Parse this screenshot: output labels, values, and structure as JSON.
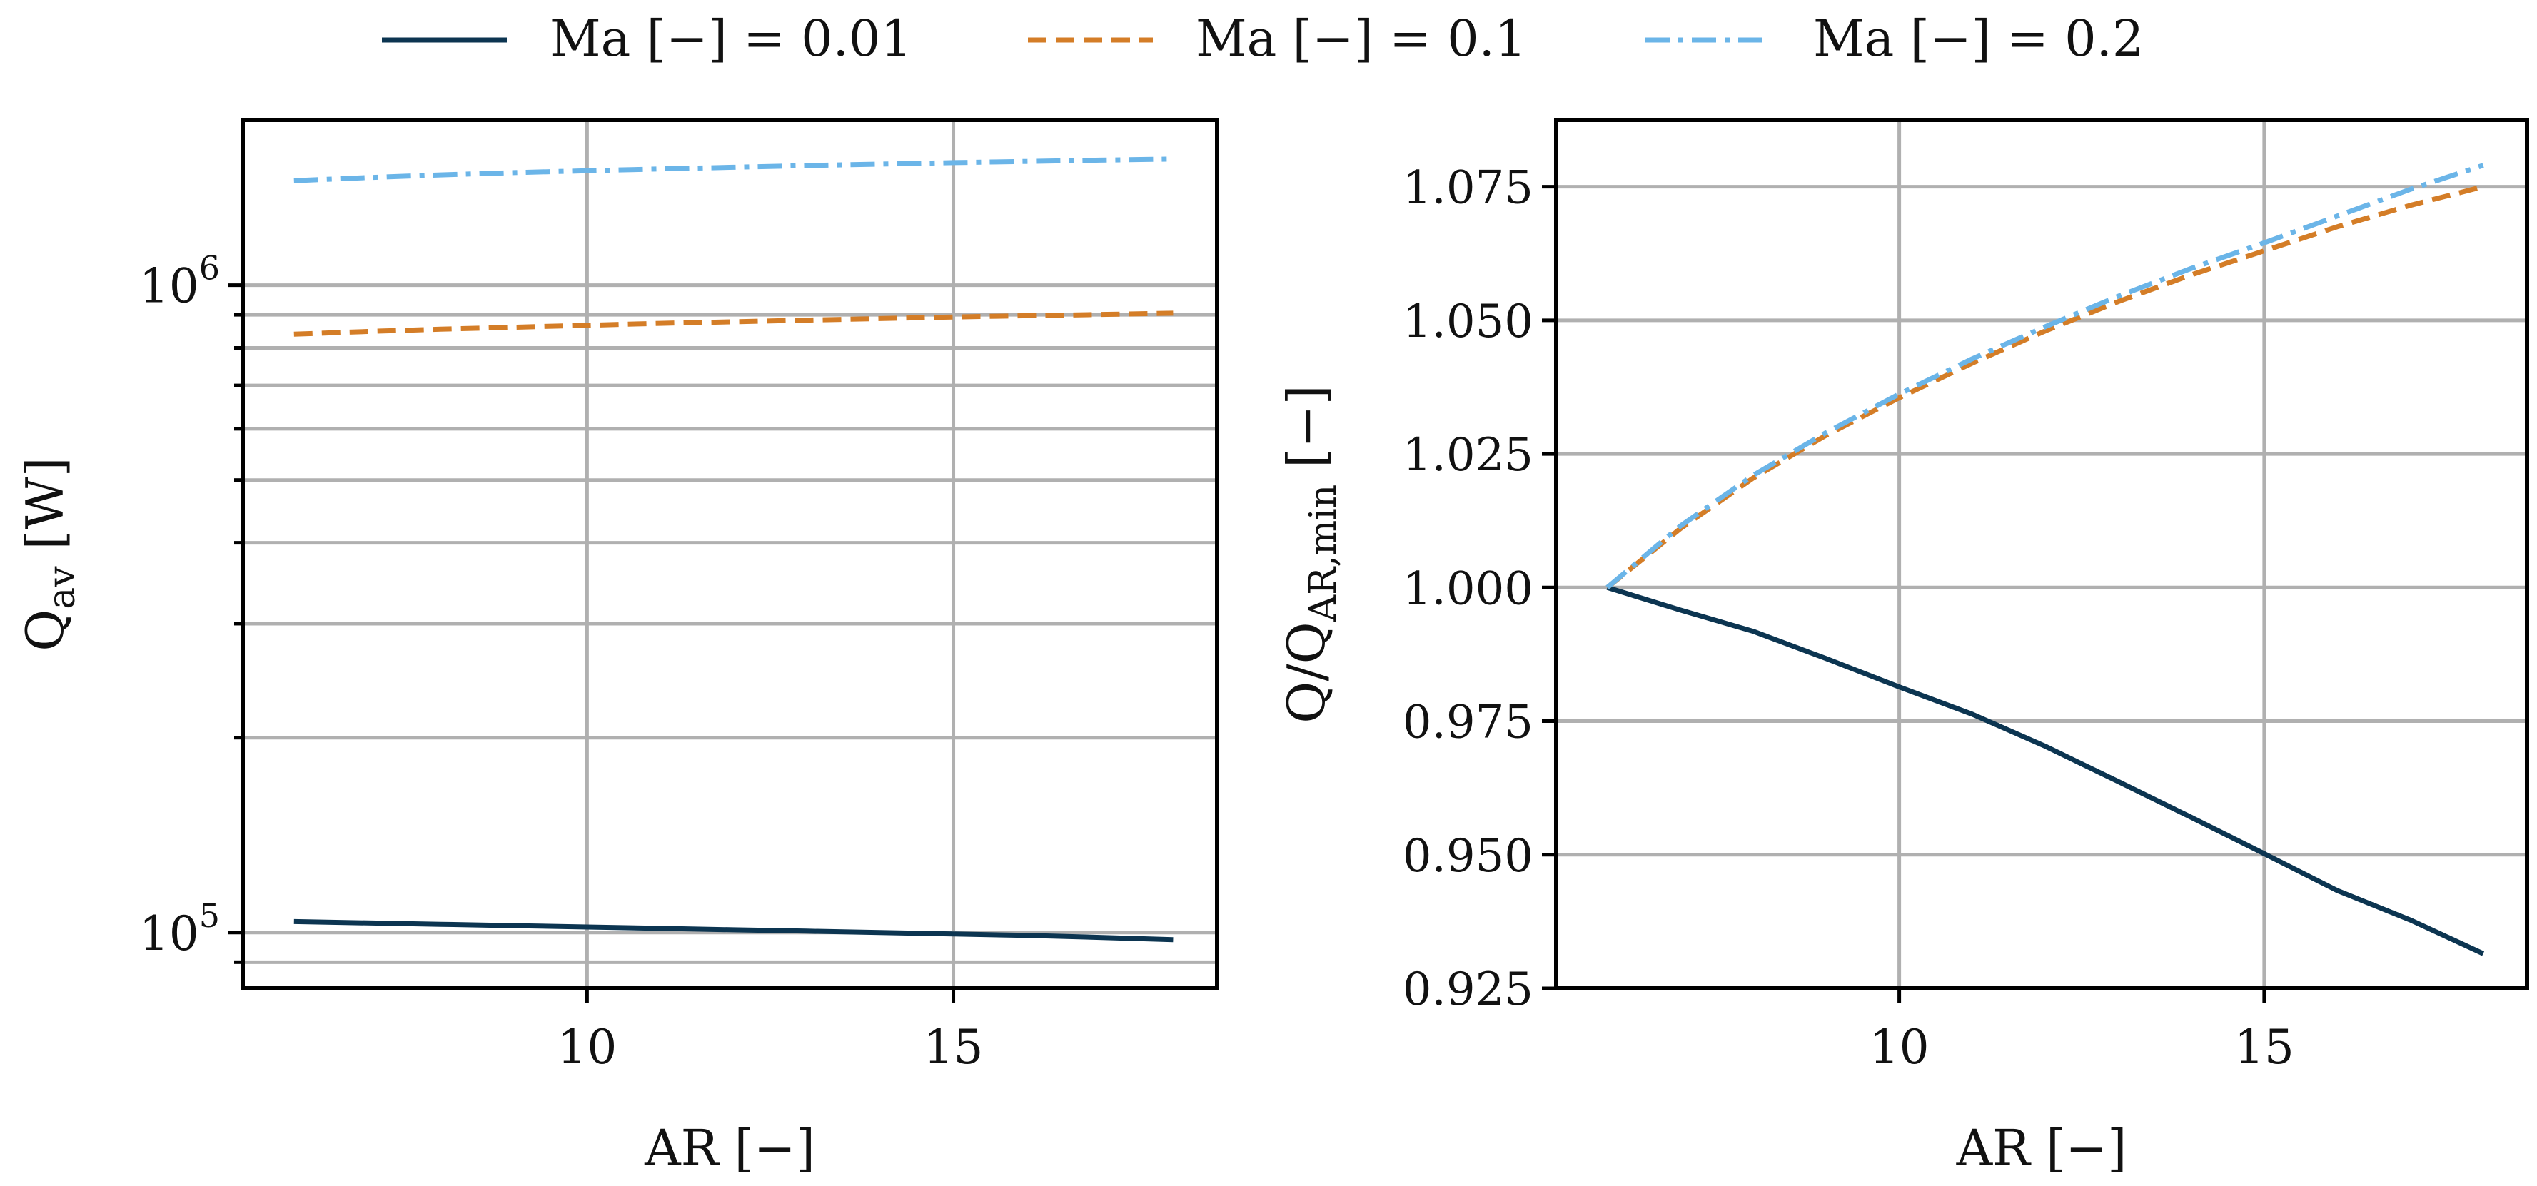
{
  "legend": [
    {
      "label": "Ma [−] = 0.01",
      "color": "#0c3551",
      "dash": "solid"
    },
    {
      "label": "Ma [−] = 0.1",
      "color": "#d47d27",
      "dash": "dashed"
    },
    {
      "label": "Ma [−] = 0.2",
      "color": "#6bb5e8",
      "dash": "dashdot"
    }
  ],
  "chart_data": [
    {
      "type": "line",
      "xlabel": "AR [−]",
      "ylabel": "Q",
      "ylabel_sub": "av",
      "ylabel_suffix": " [W]",
      "yscale": "log",
      "xlim": [
        5.3,
        18.6
      ],
      "ylim": [
        82000,
        1800000
      ],
      "xticks": [
        10,
        15
      ],
      "xtick_labels": [
        "10",
        "15"
      ],
      "yticks": [
        100000,
        1000000
      ],
      "ytick_labels": [
        {
          "base": "10",
          "exp": "5"
        },
        {
          "base": "10",
          "exp": "6"
        }
      ],
      "grid": true,
      "x": [
        6,
        7,
        8,
        9,
        10,
        11,
        12,
        13,
        14,
        15,
        16,
        17,
        18
      ],
      "series": [
        {
          "name": "Ma [−] = 0.01",
          "values": [
            104000,
            103500,
            103000,
            102500,
            102000,
            101500,
            101000,
            100500,
            100000,
            99500,
            99000,
            98300,
            97500
          ]
        },
        {
          "name": "Ma [−] = 0.1",
          "values": [
            840000,
            848000,
            855000,
            861000,
            867000,
            873000,
            878000,
            883000,
            888000,
            893000,
            897000,
            901000,
            905000
          ]
        },
        {
          "name": "Ma [−] = 0.2",
          "values": [
            1450000,
            1466000,
            1480000,
            1492000,
            1502000,
            1512000,
            1521000,
            1530000,
            1538000,
            1546000,
            1553000,
            1560000,
            1566000
          ]
        }
      ]
    },
    {
      "type": "line",
      "xlabel": "AR [−]",
      "ylabel": "Q/Q",
      "ylabel_sub": "AR,min",
      "ylabel_suffix": " [−]",
      "yscale": "linear",
      "xlim": [
        5.3,
        18.6
      ],
      "ylim": [
        0.925,
        1.0875
      ],
      "xticks": [
        10,
        15
      ],
      "xtick_labels": [
        "10",
        "15"
      ],
      "yticks": [
        0.925,
        0.95,
        0.975,
        1.0,
        1.025,
        1.05,
        1.075
      ],
      "ytick_labels": [
        "0.925",
        "0.950",
        "0.975",
        "1.000",
        "1.025",
        "1.050",
        "1.075"
      ],
      "grid": true,
      "x": [
        6,
        7,
        8,
        9,
        10,
        11,
        12,
        13,
        14,
        15,
        16,
        17,
        18
      ],
      "series": [
        {
          "name": "Ma [−] = 0.01",
          "values": [
            1.0,
            0.9958,
            0.9918,
            0.9867,
            0.9814,
            0.9763,
            0.9703,
            0.9637,
            0.957,
            0.9502,
            0.9433,
            0.9378,
            0.9315
          ]
        },
        {
          "name": "Ma [−] = 0.1",
          "values": [
            1.0,
            1.011,
            1.0205,
            1.0285,
            1.0355,
            1.042,
            1.048,
            1.0535,
            1.0585,
            1.063,
            1.0675,
            1.0715,
            1.075
          ]
        },
        {
          "name": "Ma [−] = 0.2",
          "values": [
            1.0,
            1.0115,
            1.021,
            1.029,
            1.0362,
            1.0428,
            1.0488,
            1.0545,
            1.0597,
            1.0645,
            1.0695,
            1.0745,
            1.079
          ]
        }
      ]
    }
  ]
}
